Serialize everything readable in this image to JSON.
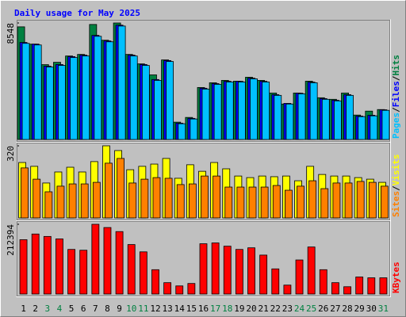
{
  "chart_data": [
    {
      "type": "bar",
      "title": "Daily usage for May 2025",
      "ylim": [
        0,
        8548
      ],
      "yticks": [
        8548
      ],
      "legend_separator": "/",
      "series": [
        {
          "name": "Hits",
          "color": "#008040",
          "values": [
            8265,
            6994,
            5491,
            5664,
            6127,
            6242,
            8439,
            7283,
            8548,
            6242,
            5549,
            4740,
            5838,
            1272,
            1618,
            3815,
            4162,
            4335,
            4277,
            4566,
            4335,
            3410,
            2601,
            3410,
            4277,
            3063,
            2948,
            3410,
            1792,
            2081,
            2196
          ]
        },
        {
          "name": "Files",
          "color": "#0000ff",
          "values": [
            7120,
            7000,
            5380,
            5500,
            6080,
            6190,
            7640,
            7230,
            8390,
            6190,
            5500,
            4400,
            5790,
            1200,
            1550,
            3760,
            4100,
            4270,
            4270,
            4500,
            4270,
            3290,
            2650,
            3400,
            4210,
            3000,
            2880,
            3290,
            1720,
            1780,
            2180
          ]
        },
        {
          "name": "Pages",
          "color": "#00c0ff",
          "values": [
            7052,
            6936,
            5318,
            5433,
            6011,
            6127,
            7572,
            7167,
            8323,
            6127,
            5433,
            4335,
            5722,
            1156,
            1503,
            3699,
            4046,
            4219,
            4219,
            4451,
            4219,
            3237,
            2601,
            3352,
            4162,
            2948,
            2832,
            3237,
            1676,
            1734,
            2139
          ]
        }
      ]
    },
    {
      "type": "bar",
      "ylim": [
        0,
        320
      ],
      "yticks": [
        320
      ],
      "legend_separator": "/",
      "series": [
        {
          "name": "Visits",
          "color": "#ffff00",
          "values": [
            246,
            229,
            155,
            204,
            225,
            204,
            250,
            320,
            299,
            214,
            229,
            239,
            264,
            176,
            236,
            207,
            246,
            218,
            186,
            179,
            186,
            183,
            186,
            165,
            229,
            193,
            186,
            186,
            179,
            172,
            158
          ]
        },
        {
          "name": "Sites",
          "color": "#ff8000",
          "values": [
            222,
            172,
            116,
            141,
            151,
            151,
            158,
            243,
            264,
            155,
            172,
            179,
            176,
            148,
            151,
            186,
            186,
            137,
            137,
            137,
            137,
            144,
            123,
            141,
            165,
            130,
            155,
            155,
            162,
            158,
            141
          ]
        }
      ]
    },
    {
      "type": "bar",
      "ylim": [
        0,
        212394
      ],
      "yticks": [
        212394
      ],
      "categories": [
        "1",
        "2",
        "3",
        "4",
        "5",
        "6",
        "7",
        "8",
        "9",
        "10",
        "11",
        "12",
        "13",
        "14",
        "15",
        "16",
        "17",
        "18",
        "19",
        "20",
        "21",
        "22",
        "23",
        "24",
        "25",
        "26",
        "27",
        "28",
        "29",
        "30",
        "31"
      ],
      "category_colors": [
        "#000000",
        "#000000",
        "#008040",
        "#008040",
        "#000000",
        "#000000",
        "#000000",
        "#000000",
        "#000000",
        "#008040",
        "#008040",
        "#000000",
        "#000000",
        "#000000",
        "#000000",
        "#000000",
        "#008040",
        "#008040",
        "#000000",
        "#000000",
        "#000000",
        "#000000",
        "#000000",
        "#008040",
        "#008040",
        "#000000",
        "#000000",
        "#000000",
        "#000000",
        "#000000",
        "#008040"
      ],
      "series": [
        {
          "name": "KBytes",
          "color": "#ff0000",
          "values": [
            165470,
            182758,
            175349,
            167940,
            135834,
            133364,
            212394,
            202515,
            190167,
            150652,
            128424,
            74091,
            34576,
            24697,
            32106,
            153121,
            155591,
            145712,
            135834,
            140773,
            118545,
            76561,
            27167,
            103727,
            143242,
            74091,
            34576,
            22227,
            51864,
            49394,
            49394
          ]
        }
      ]
    }
  ]
}
